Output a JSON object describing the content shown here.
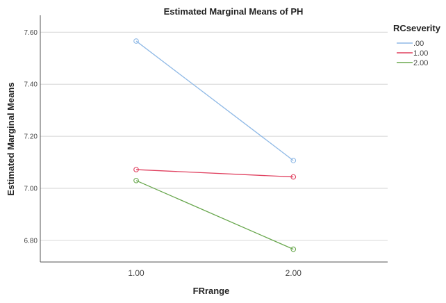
{
  "chart_data": {
    "type": "line",
    "title": "Estimated Marginal Means of PH",
    "xlabel": "FRrange",
    "ylabel": "Estimated Marginal Means",
    "categories": [
      "1.00",
      "2.00"
    ],
    "x": [
      1,
      2
    ],
    "xlim": [
      0.39,
      2.6
    ],
    "ylim": [
      6.717,
      7.665
    ],
    "yticks": [
      6.8,
      7.0,
      7.2,
      7.4,
      7.6
    ],
    "ytick_labels": [
      "6.80",
      "7.00",
      "7.20",
      "7.40",
      "7.60"
    ],
    "grid": true,
    "legend": {
      "title": "RCseverity",
      "placement": "top-right"
    },
    "series": [
      {
        "name": ".00",
        "color": "#8fb9e6",
        "values": [
          7.566,
          7.107
        ]
      },
      {
        "name": "1.00",
        "color": "#e0405f",
        "values": [
          7.072,
          7.044
        ]
      },
      {
        "name": "2.00",
        "color": "#6aa84f",
        "values": [
          7.03,
          6.766
        ]
      }
    ]
  }
}
